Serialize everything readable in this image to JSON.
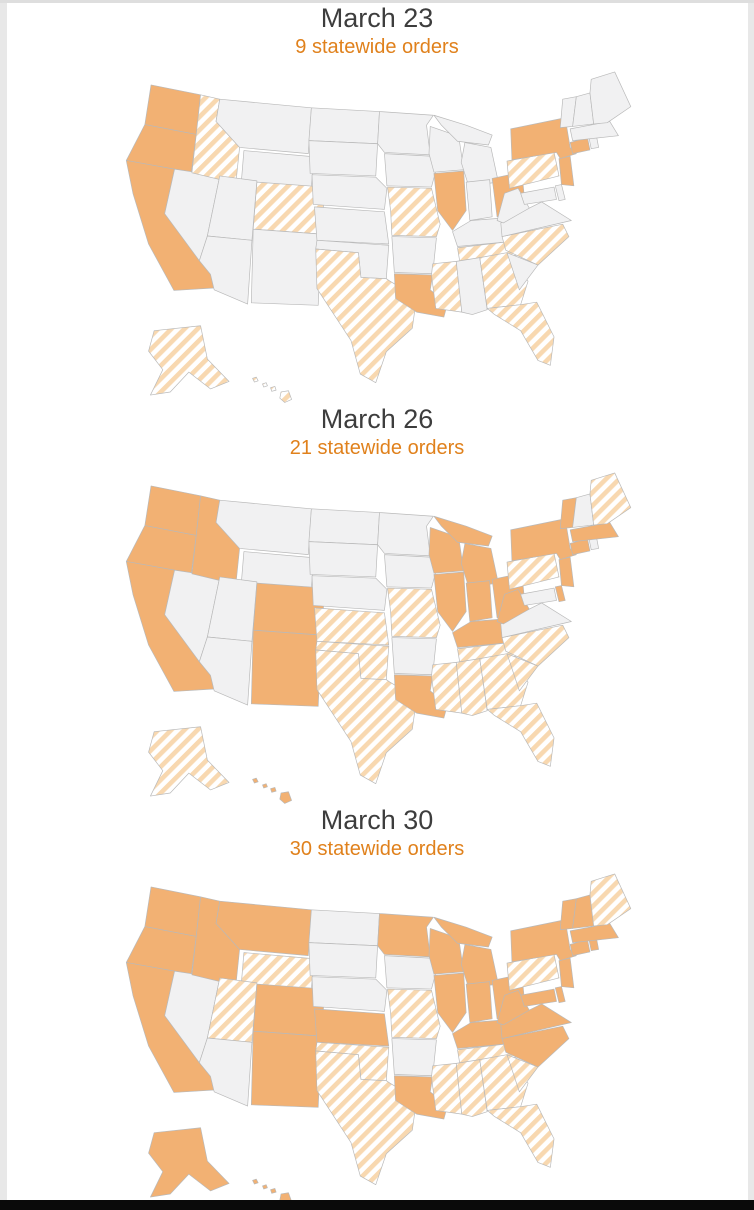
{
  "panels": [
    {
      "title": "March 23",
      "subtitle": "9 statewide orders",
      "statewide_orders": [
        "WA",
        "OR",
        "CA",
        "IL",
        "OH",
        "NY",
        "NJ",
        "CT",
        "LA"
      ],
      "partial_orders": [
        "ID",
        "CO",
        "TX",
        "MO",
        "PA",
        "TN",
        "NC",
        "MS",
        "GA",
        "FL",
        "AK",
        "HI"
      ]
    },
    {
      "title": "March 26",
      "subtitle": "21 statewide orders",
      "statewide_orders": [
        "WA",
        "OR",
        "CA",
        "ID",
        "CO",
        "NM",
        "WI",
        "MI",
        "IL",
        "IN",
        "OH",
        "KY",
        "WV",
        "NY",
        "NJ",
        "CT",
        "MA",
        "VT",
        "DE",
        "LA",
        "HI"
      ],
      "partial_orders": [
        "KS",
        "OK",
        "TX",
        "MO",
        "TN",
        "MS",
        "AL",
        "GA",
        "FL",
        "SC",
        "NC",
        "PA",
        "ME",
        "AK"
      ]
    },
    {
      "title": "March 30",
      "subtitle": "30 statewide orders",
      "statewide_orders": [
        "WA",
        "OR",
        "CA",
        "ID",
        "MT",
        "CO",
        "NM",
        "KS",
        "MN",
        "WI",
        "MI",
        "IL",
        "IN",
        "OH",
        "KY",
        "WV",
        "VA",
        "MD",
        "DE",
        "NC",
        "NY",
        "NJ",
        "CT",
        "RI",
        "MA",
        "VT",
        "NH",
        "LA",
        "AK",
        "HI"
      ],
      "partial_orders": [
        "WY",
        "UT",
        "OK",
        "TX",
        "MO",
        "TN",
        "MS",
        "AL",
        "GA",
        "FL",
        "SC",
        "PA",
        "ME"
      ]
    }
  ],
  "colors": {
    "statewide_fill": "#f2b173",
    "partial_stripe": "#f8d8b0",
    "no_order_fill": "#f1f1f2",
    "state_border": "#b9b9b9",
    "title_text": "#3d3d3d",
    "subtitle_text": "#e0811c",
    "page_edge": "#e8e8e8",
    "bottom_bar": "#0a0a0a"
  }
}
